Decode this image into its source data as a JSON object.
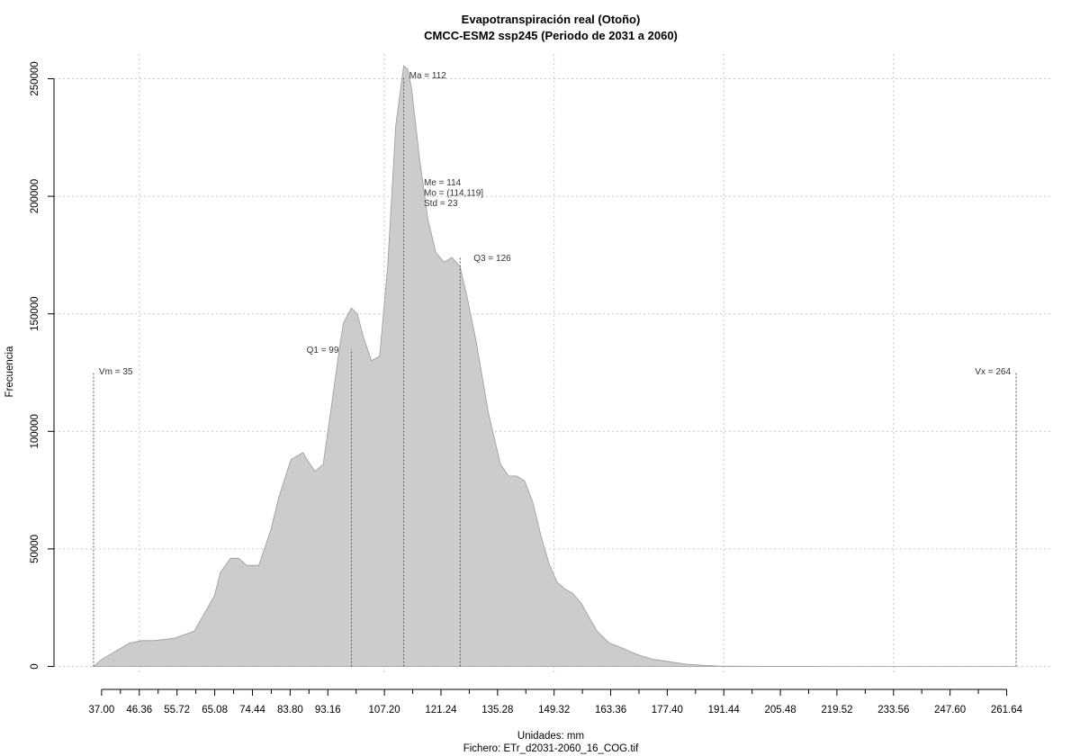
{
  "chart_data": {
    "type": "area",
    "title": "Evapotranspiración real (Otoño)",
    "subtitle": "CMCC-ESM2 ssp245 (Periodo de 2031 a 2060)",
    "xlabel": "Unidades: mm",
    "ylabel": "Frecuencia",
    "footer": "Fichero: ETr_d2031-2060_16_COG.tif",
    "xlim": [
      32,
      266
    ],
    "ylim": [
      0,
      262000
    ],
    "x_ticks": [
      37.0,
      46.36,
      55.72,
      65.08,
      74.44,
      83.8,
      93.16,
      107.2,
      121.24,
      135.28,
      149.32,
      163.36,
      177.4,
      191.44,
      205.48,
      219.52,
      233.56,
      247.6,
      261.64
    ],
    "x_tick_labels": [
      "37.00",
      "46.36",
      "55.72",
      "65.08",
      "74.44",
      "83.80",
      "93.16",
      "107.20",
      "121.24",
      "135.28",
      "149.32",
      "163.36",
      "177.40",
      "191.44",
      "205.48",
      "219.52",
      "233.56",
      "247.60",
      "261.64"
    ],
    "y_ticks": [
      0,
      50000,
      100000,
      150000,
      200000,
      250000
    ],
    "y_tick_labels": [
      "0",
      "50000",
      "100000",
      "150000",
      "200000",
      "250000"
    ],
    "grid": true,
    "fill_color": "#cccccc",
    "series": [
      {
        "x": [
          35,
          37,
          40,
          44,
          47,
          50,
          55,
          60,
          65,
          66.5,
          69,
          71,
          73,
          76,
          79,
          81,
          84,
          87,
          88,
          90,
          92,
          94,
          96,
          97,
          99,
          100.5,
          102,
          104,
          106,
          108,
          110,
          112,
          113,
          114,
          116,
          118,
          120,
          122,
          124,
          126,
          128,
          130,
          133,
          136,
          138,
          140,
          142,
          144,
          146,
          148,
          150,
          152,
          154,
          156,
          158,
          160,
          163,
          166,
          170,
          174,
          178,
          182,
          186,
          190,
          200,
          220,
          240,
          264
        ],
        "y": [
          0,
          3000,
          6000,
          10000,
          11000,
          11000,
          12000,
          15000,
          30000,
          40000,
          46000,
          46000,
          43000,
          43000,
          58000,
          72000,
          88000,
          91000,
          88000,
          83000,
          86000,
          110000,
          135000,
          146000,
          152500,
          150000,
          140000,
          130000,
          132000,
          170000,
          230000,
          255500,
          254000,
          245000,
          215000,
          190000,
          176000,
          172000,
          174000,
          170000,
          155000,
          138000,
          108000,
          86000,
          81000,
          81000,
          79000,
          70000,
          56000,
          44000,
          36000,
          33000,
          31000,
          27000,
          21000,
          15000,
          10000,
          8000,
          5000,
          3000,
          2000,
          1000,
          500,
          200,
          50,
          10,
          5,
          0
        ]
      }
    ],
    "vlines": [
      {
        "x": 35,
        "label": "Vm = 35",
        "to": 125000
      },
      {
        "x": 99,
        "label": "Q1 = 99",
        "to": 135000
      },
      {
        "x": 112,
        "label": "Ma = 112",
        "to": 251000
      },
      {
        "x": 126,
        "label": "Q3 = 126",
        "to": 174000
      },
      {
        "x": 264,
        "label": "Vx = 264",
        "to": 125000
      }
    ],
    "stats_labels": [
      "Me = 114",
      "Mo = (114,119]",
      "Std = 23"
    ]
  }
}
